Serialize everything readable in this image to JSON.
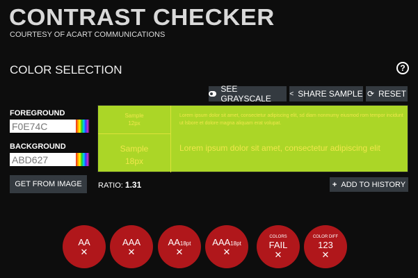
{
  "header": {
    "title": "CONTRAST CHECKER",
    "subtitle": "COURTESY OF ACART COMMUNICATIONS"
  },
  "section_title": "COLOR SELECTION",
  "help_label": "?",
  "toolbar": {
    "grayscale": "SEE GRAYSCALE",
    "share": "SHARE SAMPLE",
    "reset": "RESET"
  },
  "foreground": {
    "label": "FOREGROUND",
    "value": "F0E74C"
  },
  "background": {
    "label": "BACKGROUND",
    "value": "ABD627"
  },
  "get_from_image": "GET FROM IMAGE",
  "ratio": {
    "label": "RATIO:",
    "value": "1.31"
  },
  "add_history": "ADD TO HISTORY",
  "preview": {
    "small_label": "Sample",
    "small_size": "12px",
    "large_label": "Sample",
    "large_size": "18px",
    "small_text": "Lorem ipsum dolor sit amet, consectetur adipiscing elit, sd diam nonmumy eiusmod rom tempor incidunt ut lsbore et dolore magna aliquam erat volupat.",
    "large_text": "Lorem ipsum dolor sit amet, consectetur adipiscing elit"
  },
  "results": [
    {
      "title": "",
      "main": "AA",
      "suffix": "",
      "mark": "✕"
    },
    {
      "title": "",
      "main": "AAA",
      "suffix": "",
      "mark": "✕"
    },
    {
      "title": "",
      "main": "AA",
      "suffix": "18pt",
      "mark": "✕"
    },
    {
      "title": "",
      "main": "AAA",
      "suffix": "18pt",
      "mark": "✕"
    },
    {
      "title": "COLORS",
      "main": "FAIL",
      "suffix": "",
      "mark": "✕"
    },
    {
      "title": "COLOR DIFF",
      "main": "123",
      "suffix": "",
      "mark": "✕"
    }
  ],
  "colors": {
    "fail": "#b0171b",
    "foreground": "#F0E74C",
    "background": "#ABD627"
  }
}
